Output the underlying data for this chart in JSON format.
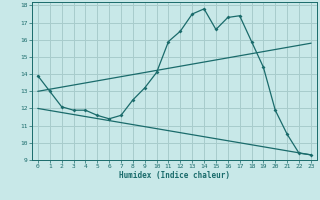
{
  "title": "",
  "xlabel": "Humidex (Indice chaleur)",
  "ylabel": "",
  "bg_color": "#c8e8e8",
  "line_color": "#1a6b6b",
  "grid_color": "#a8cccc",
  "xlim": [
    -0.5,
    23.5
  ],
  "ylim": [
    9,
    18.2
  ],
  "xticks": [
    0,
    1,
    2,
    3,
    4,
    5,
    6,
    7,
    8,
    9,
    10,
    11,
    12,
    13,
    14,
    15,
    16,
    17,
    18,
    19,
    20,
    21,
    22,
    23
  ],
  "yticks": [
    9,
    10,
    11,
    12,
    13,
    14,
    15,
    16,
    17,
    18
  ],
  "line1_x": [
    0,
    1,
    2,
    3,
    4,
    5,
    6,
    7,
    8,
    9,
    10,
    11,
    12,
    13,
    14,
    15,
    16,
    17,
    18,
    19,
    20,
    21,
    22,
    23
  ],
  "line1_y": [
    13.9,
    13.0,
    12.1,
    11.9,
    11.9,
    11.6,
    11.4,
    11.6,
    12.5,
    13.2,
    14.1,
    15.9,
    16.5,
    17.5,
    17.8,
    16.6,
    17.3,
    17.4,
    15.9,
    14.4,
    11.9,
    10.5,
    9.4,
    9.3
  ],
  "line2_x": [
    0,
    23
  ],
  "line2_y": [
    13.0,
    15.8
  ],
  "line3_x": [
    0,
    23
  ],
  "line3_y": [
    12.0,
    9.3
  ]
}
